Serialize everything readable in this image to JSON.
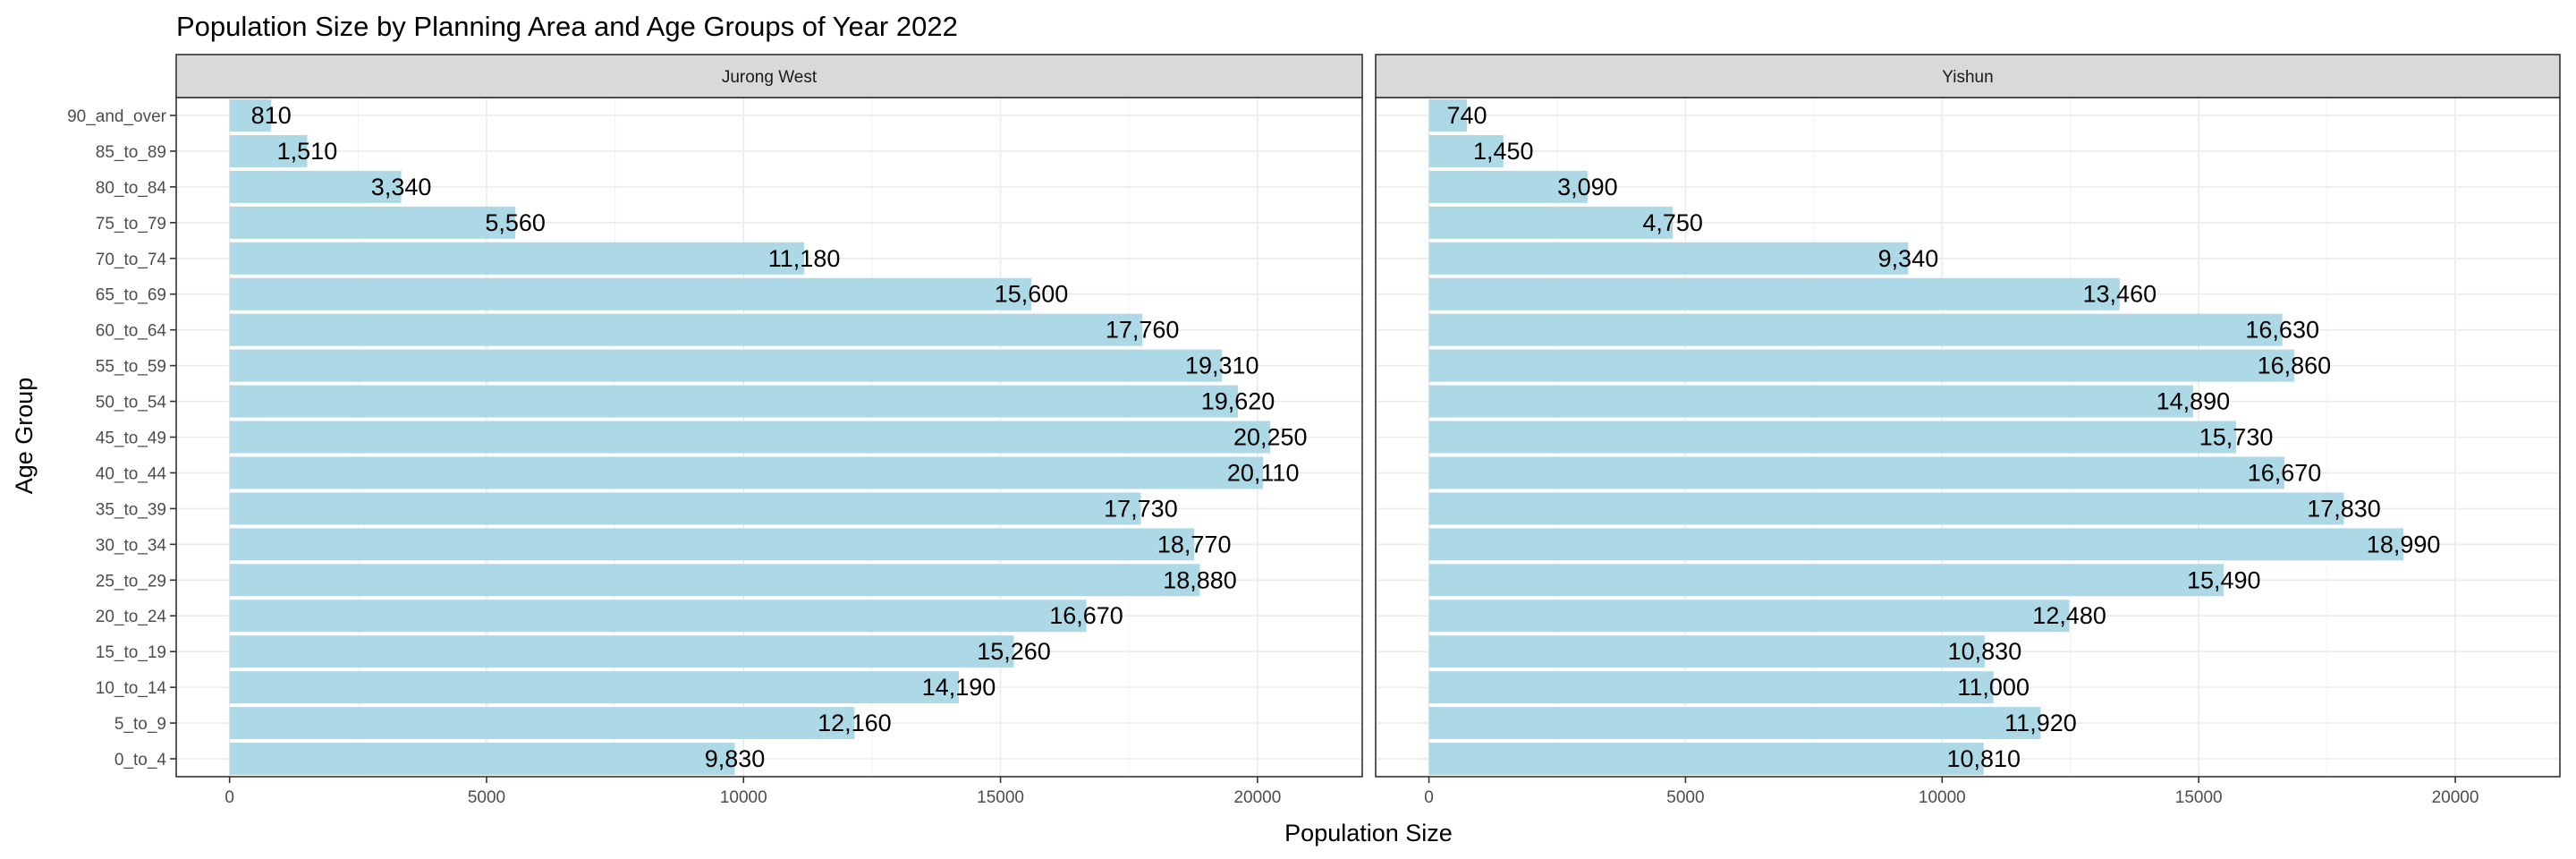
{
  "chart_data": {
    "type": "bar",
    "orientation": "horizontal",
    "title": "Population Size by Planning Area and Age Groups of Year 2022",
    "xlabel": "Population Size",
    "ylabel": "Age Group",
    "xlim": [
      0,
      21000
    ],
    "xticks": [
      "0",
      "5000",
      "10000",
      "15000",
      "20000"
    ],
    "xtick_values": [
      0,
      5000,
      10000,
      15000,
      20000
    ],
    "categories": [
      "90_and_over",
      "85_to_89",
      "80_to_84",
      "75_to_79",
      "70_to_74",
      "65_to_69",
      "60_to_64",
      "55_to_59",
      "50_to_54",
      "45_to_49",
      "40_to_44",
      "35_to_39",
      "30_to_34",
      "25_to_29",
      "20_to_24",
      "15_to_19",
      "10_to_14",
      "5_to_9",
      "0_to_4"
    ],
    "bar_color": "#add8e6",
    "grid": true,
    "facets": [
      {
        "name": "Jurong West",
        "values": [
          810,
          1510,
          3340,
          5560,
          11180,
          15600,
          17760,
          19310,
          19620,
          20250,
          20110,
          17730,
          18770,
          18880,
          16670,
          15260,
          14190,
          12160,
          9830
        ],
        "labels": [
          "810",
          "1,510",
          "3,340",
          "5,560",
          "11,180",
          "15,600",
          "17,760",
          "19,310",
          "19,620",
          "20,250",
          "20,110",
          "17,730",
          "18,770",
          "18,880",
          "16,670",
          "15,260",
          "14,190",
          "12,160",
          "9,830"
        ]
      },
      {
        "name": "Yishun",
        "values": [
          740,
          1450,
          3090,
          4750,
          9340,
          13460,
          16630,
          16860,
          14890,
          15730,
          16670,
          17830,
          18990,
          15490,
          12480,
          10830,
          11000,
          11920,
          10810
        ],
        "labels": [
          "740",
          "1,450",
          "3,090",
          "4,750",
          "9,340",
          "13,460",
          "16,630",
          "16,860",
          "14,890",
          "15,730",
          "16,670",
          "17,830",
          "18,990",
          "15,490",
          "12,480",
          "10,830",
          "11,000",
          "11,920",
          "10,810"
        ]
      }
    ]
  }
}
